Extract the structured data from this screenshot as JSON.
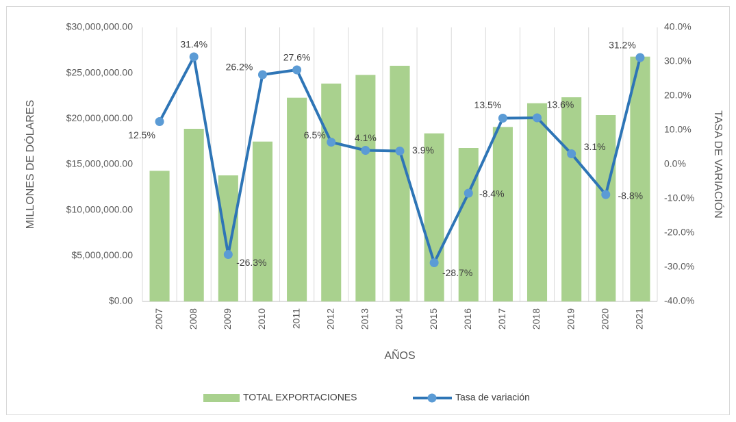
{
  "chart_data": {
    "type": "bar-line",
    "categories": [
      "2007",
      "2008",
      "2009",
      "2010",
      "2011",
      "2012",
      "2013",
      "2014",
      "2015",
      "2016",
      "2017",
      "2018",
      "2019",
      "2020",
      "2021"
    ],
    "series": [
      {
        "name": "TOTAL EXPORTACIONES",
        "type": "bar",
        "color": "#a9d18e",
        "axis": "y",
        "values": [
          14300000,
          18900000,
          13800000,
          17500000,
          22300000,
          23850000,
          24800000,
          25800000,
          18400000,
          16800000,
          19100000,
          21700000,
          22350000,
          20400000,
          26800000
        ]
      },
      {
        "name": "Tasa de variación",
        "type": "line",
        "color": "#2e75b6",
        "marker_color": "#5b9bd5",
        "axis": "y2",
        "values": [
          12.5,
          31.4,
          -26.3,
          26.2,
          27.6,
          6.5,
          4.1,
          3.9,
          -28.7,
          -8.4,
          13.5,
          13.6,
          3.1,
          -8.8,
          31.2
        ],
        "value_labels": [
          "12.5%",
          "31.4%",
          "-26.3%",
          "26.2%",
          "27.6%",
          "6.5%",
          "4.1%",
          "3.9%",
          "-28.7%",
          "-8.4%",
          "13.5%",
          "13.6%",
          "3.1%",
          "-8.8%",
          "31.2%"
        ]
      }
    ],
    "ylabel": "MILLONES DE DÓLARES",
    "y2label": "TASA DE VARIACIÓN",
    "xlabel": "AÑOS",
    "ylim": [
      0,
      30000000
    ],
    "yticks": [
      {
        "value": 0,
        "label": "$0.00"
      },
      {
        "value": 5000000,
        "label": "$5,000,000.00"
      },
      {
        "value": 10000000,
        "label": "$10,000,000.00"
      },
      {
        "value": 15000000,
        "label": "$15,000,000.00"
      },
      {
        "value": 20000000,
        "label": "$20,000,000.00"
      },
      {
        "value": 25000000,
        "label": "$25,000,000.00"
      },
      {
        "value": 30000000,
        "label": "$30,000,000.00"
      }
    ],
    "y2lim": [
      -40,
      40
    ],
    "y2ticks": [
      {
        "value": -40,
        "label": "-40.0%"
      },
      {
        "value": -30,
        "label": "-30.0%"
      },
      {
        "value": -20,
        "label": "-20.0%"
      },
      {
        "value": -10,
        "label": "-10.0%"
      },
      {
        "value": 0,
        "label": "0.0%"
      },
      {
        "value": 10,
        "label": "10.0%"
      },
      {
        "value": 20,
        "label": "20.0%"
      },
      {
        "value": 30,
        "label": "30.0%"
      },
      {
        "value": 40,
        "label": "40.0%"
      }
    ],
    "legend": "bottom",
    "grid": "x"
  }
}
